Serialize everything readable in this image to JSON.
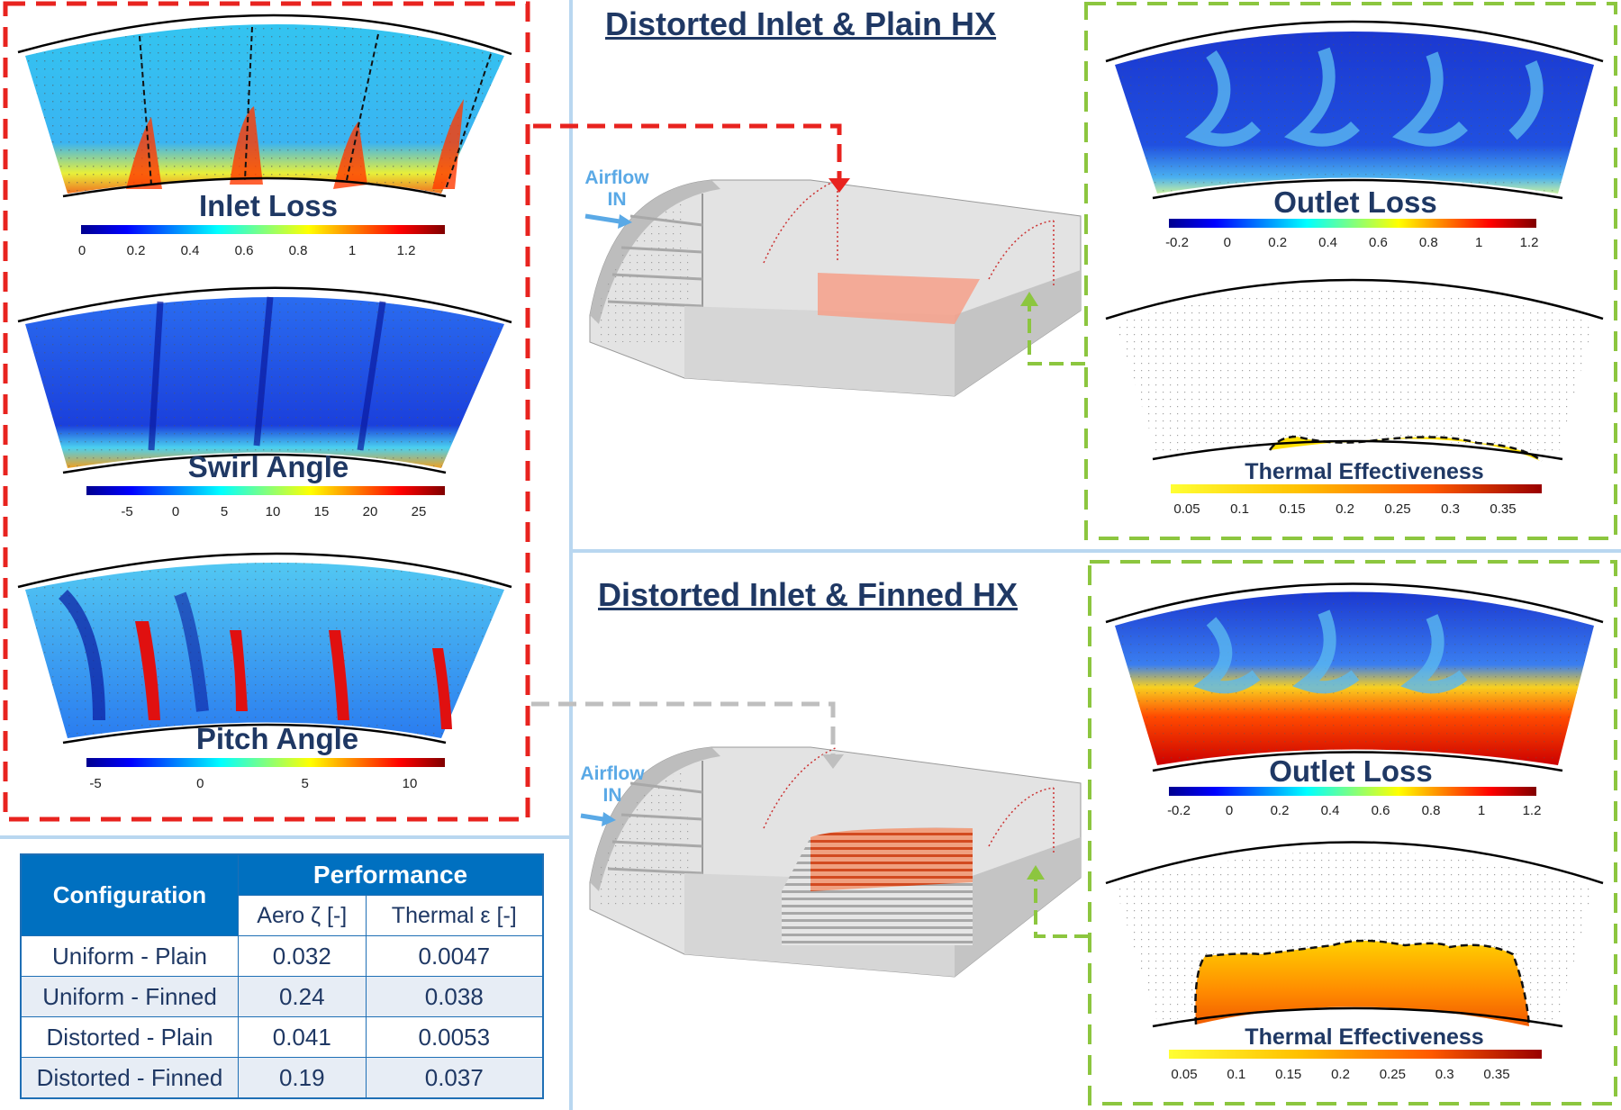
{
  "sections": {
    "plain_title": "Distorted Inlet & Plain HX",
    "finned_title": "Distorted Inlet & Finned HX"
  },
  "airflow": {
    "label_line1": "Airflow",
    "label_line2": "IN"
  },
  "inlet_panel": {
    "plots": [
      {
        "title": "Inlet Loss",
        "ticks": [
          "0",
          "0.2",
          "0.4",
          "0.6",
          "0.8",
          "1",
          "1.2"
        ]
      },
      {
        "title": "Swirl Angle",
        "ticks": [
          "-5",
          "0",
          "5",
          "10",
          "15",
          "20",
          "25"
        ]
      },
      {
        "title": "Pitch Angle",
        "ticks": [
          "-5",
          "0",
          "5",
          "10"
        ]
      }
    ]
  },
  "plain_panel": {
    "outlet": {
      "title": "Outlet Loss",
      "ticks": [
        "-0.2",
        "0",
        "0.2",
        "0.4",
        "0.6",
        "0.8",
        "1",
        "1.2"
      ]
    },
    "thermal": {
      "title": "Thermal Effectiveness",
      "ticks": [
        "0.05",
        "0.1",
        "0.15",
        "0.2",
        "0.25",
        "0.3",
        "0.35"
      ]
    }
  },
  "finned_panel": {
    "outlet": {
      "title": "Outlet Loss",
      "ticks": [
        "-0.2",
        "0",
        "0.2",
        "0.4",
        "0.6",
        "0.8",
        "1",
        "1.2"
      ]
    },
    "thermal": {
      "title": "Thermal Effectiveness",
      "ticks": [
        "0.05",
        "0.1",
        "0.15",
        "0.2",
        "0.25",
        "0.3",
        "0.35"
      ]
    }
  },
  "table": {
    "header_config": "Configuration",
    "header_perf": "Performance",
    "col_aero": "Aero ζ [-]",
    "col_thermal": "Thermal ε [-]",
    "rows": [
      {
        "config": "Uniform - Plain",
        "aero": "0.032",
        "thermal": "0.0047"
      },
      {
        "config": "Uniform - Finned",
        "aero": "0.24",
        "thermal": "0.038"
      },
      {
        "config": "Distorted - Plain",
        "aero": "0.041",
        "thermal": "0.0053"
      },
      {
        "config": "Distorted - Finned",
        "aero": "0.19",
        "thermal": "0.037"
      }
    ]
  },
  "colors": {
    "red_dash": "#e8231f",
    "green_dash": "#8cc63f",
    "gray_dash": "#bfbfbf",
    "divider": "#b9d7f0",
    "title_navy": "#1f3864",
    "table_blue": "#0070c0"
  }
}
